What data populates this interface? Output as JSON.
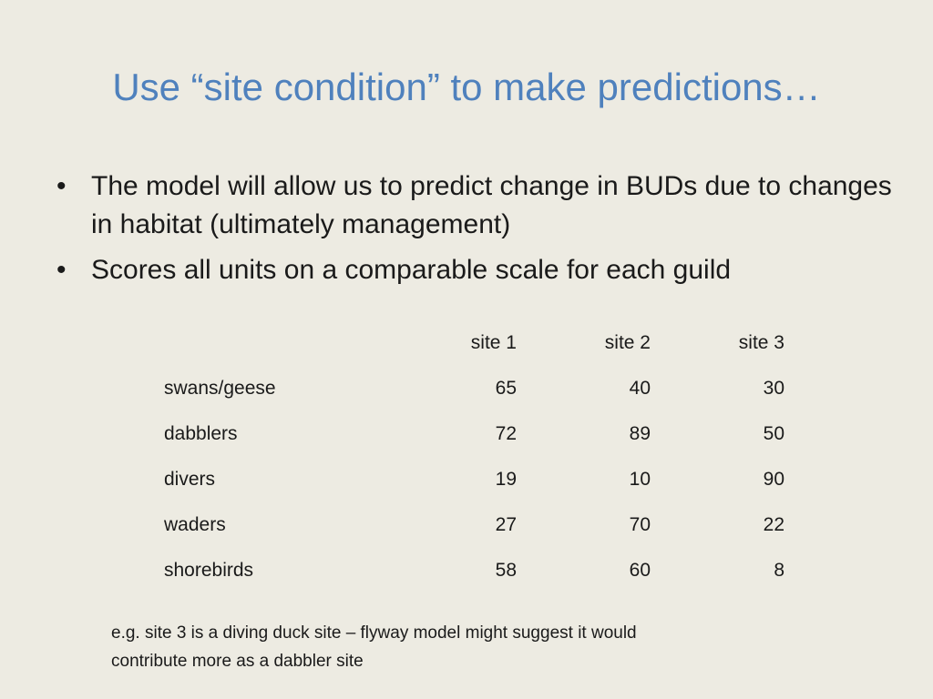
{
  "slide": {
    "title": "Use “site condition” to make predictions…",
    "bullets": [
      "The model will allow us to predict change in BUDs due to changes in habitat (ultimately management)",
      "Scores all units on  a comparable scale for each guild"
    ],
    "bullet_symbol": "•",
    "colors": {
      "background": "#edebe2",
      "title": "#4f81bd",
      "text": "#1a1a1a"
    }
  },
  "table": {
    "columns": [
      "",
      "site 1",
      "site 2",
      "site 3"
    ],
    "rows": [
      {
        "label": "swans/geese",
        "values": [
          "65",
          "40",
          "30"
        ]
      },
      {
        "label": "dabblers",
        "values": [
          "72",
          "89",
          "50"
        ]
      },
      {
        "label": "divers",
        "values": [
          "19",
          "10",
          "90"
        ]
      },
      {
        "label": "waders",
        "values": [
          "27",
          "70",
          "22"
        ]
      },
      {
        "label": "shorebirds",
        "values": [
          "58",
          "60",
          "8"
        ]
      }
    ]
  },
  "note": {
    "line1": "e.g. site 3 is a diving duck site – flyway model might suggest it would",
    "line2": "contribute more as a dabbler site"
  }
}
